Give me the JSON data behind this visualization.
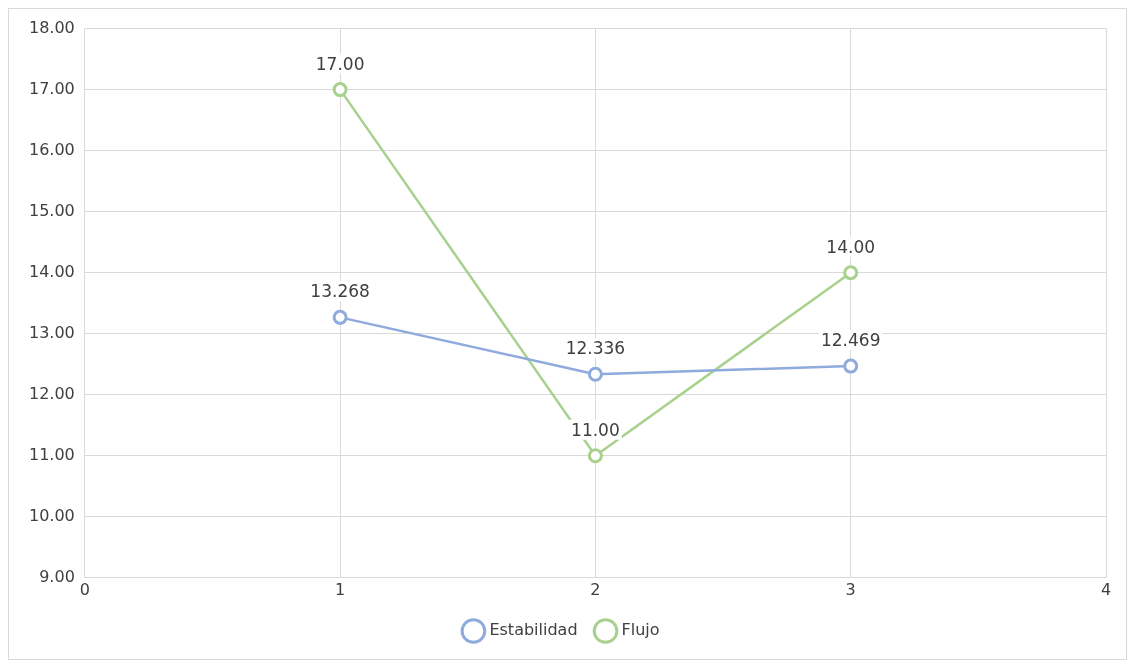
{
  "chart_data": {
    "type": "line",
    "x": [
      1,
      2,
      3
    ],
    "series": [
      {
        "name": "Estabilidad",
        "color": "#8faadc",
        "values": [
          13.268,
          12.336,
          12.469
        ],
        "value_labels": [
          "13.268",
          "12.336",
          "12.469"
        ]
      },
      {
        "name": "Flujo",
        "color": "#a9d18e",
        "values": [
          17,
          11,
          14
        ],
        "value_labels": [
          "17.00",
          "11.00",
          "14.00"
        ]
      }
    ],
    "xlim": [
      0,
      4
    ],
    "xticks": [
      0,
      1,
      2,
      3,
      4
    ],
    "ylim": [
      9,
      18
    ],
    "yticks": [
      {
        "value": 9,
        "label": "9.00"
      },
      {
        "value": 10,
        "label": "10.00"
      },
      {
        "value": 11,
        "label": "11.00"
      },
      {
        "value": 12,
        "label": "12.00"
      },
      {
        "value": 13,
        "label": "13.00"
      },
      {
        "value": 14,
        "label": "14.00"
      },
      {
        "value": 15,
        "label": "15.00"
      },
      {
        "value": 16,
        "label": "16.00"
      },
      {
        "value": 17,
        "label": "17.00"
      },
      {
        "value": 18,
        "label": "18.00"
      }
    ],
    "grid": true,
    "legend": "bottom",
    "marker": "circle",
    "line_style": "solid"
  }
}
